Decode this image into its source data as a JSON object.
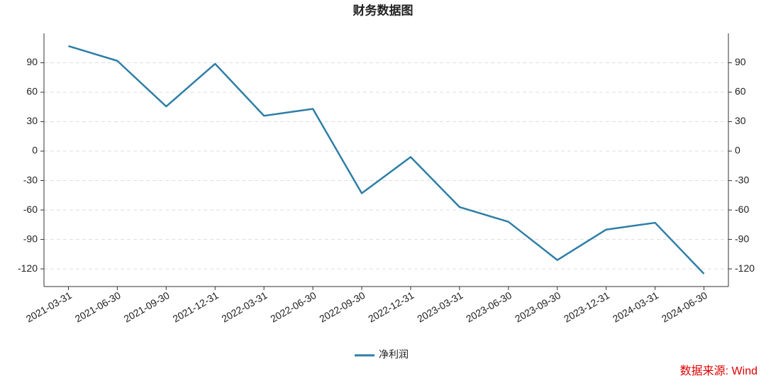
{
  "chart_data": {
    "type": "line",
    "title": "财务数据图",
    "categories": [
      "2021-03-31",
      "2021-06-30",
      "2021-09-30",
      "2021-12-31",
      "2022-03-31",
      "2022-06-30",
      "2022-09-30",
      "2022-12-31",
      "2023-03-31",
      "2023-06-30",
      "2023-09-30",
      "2023-12-31",
      "2024-03-31",
      "2024-06-30"
    ],
    "series": [
      {
        "name": "净利润",
        "color": "#2e7ea6",
        "values": [
          107,
          92,
          45.5,
          89,
          36,
          43,
          -43,
          -6,
          -57,
          -72,
          -111,
          -80,
          -73,
          -125
        ]
      }
    ],
    "ylim": [
      -138,
      120
    ],
    "yticks": [
      -120,
      -90,
      -60,
      -30,
      0,
      30,
      60,
      90
    ],
    "y2lim": [
      -138,
      120
    ],
    "y2ticks": [
      -120,
      -90,
      -60,
      -30,
      0,
      30,
      60,
      90
    ],
    "grid": true,
    "legend": "bottom",
    "source": "数据来源: Wind"
  }
}
